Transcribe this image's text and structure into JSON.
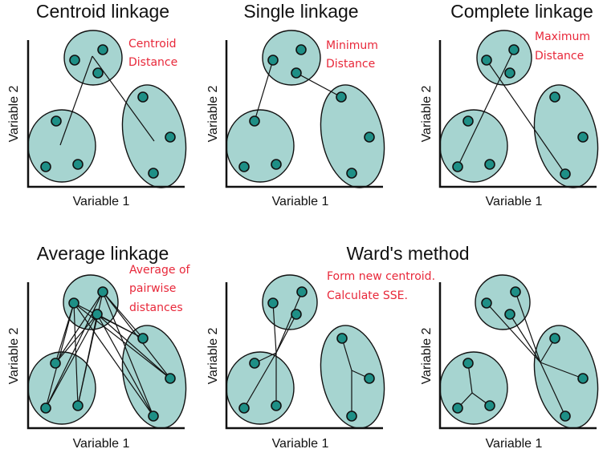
{
  "axis": {
    "xlabel": "Variable 1",
    "ylabel": "Variable 2"
  },
  "colors": {
    "cluster_fill": "#a6d4d0",
    "point_fill": "#1e8f86",
    "note_text": "#e8283a"
  },
  "panels": [
    {
      "title": "Centroid linkage",
      "note": [
        "Centroid",
        "Distance"
      ]
    },
    {
      "title": "Single linkage",
      "note": [
        "Minimum",
        "Distance"
      ]
    },
    {
      "title": "Complete linkage",
      "note": [
        "Maximum",
        "Distance"
      ]
    },
    {
      "title": "Average linkage",
      "note": [
        "Average of",
        "pairwise",
        "distances"
      ]
    },
    {
      "title": "Ward's method",
      "note": [
        "Form new centroid.",
        "Calculate SSE."
      ]
    },
    {
      "title": "",
      "note": []
    }
  ]
}
